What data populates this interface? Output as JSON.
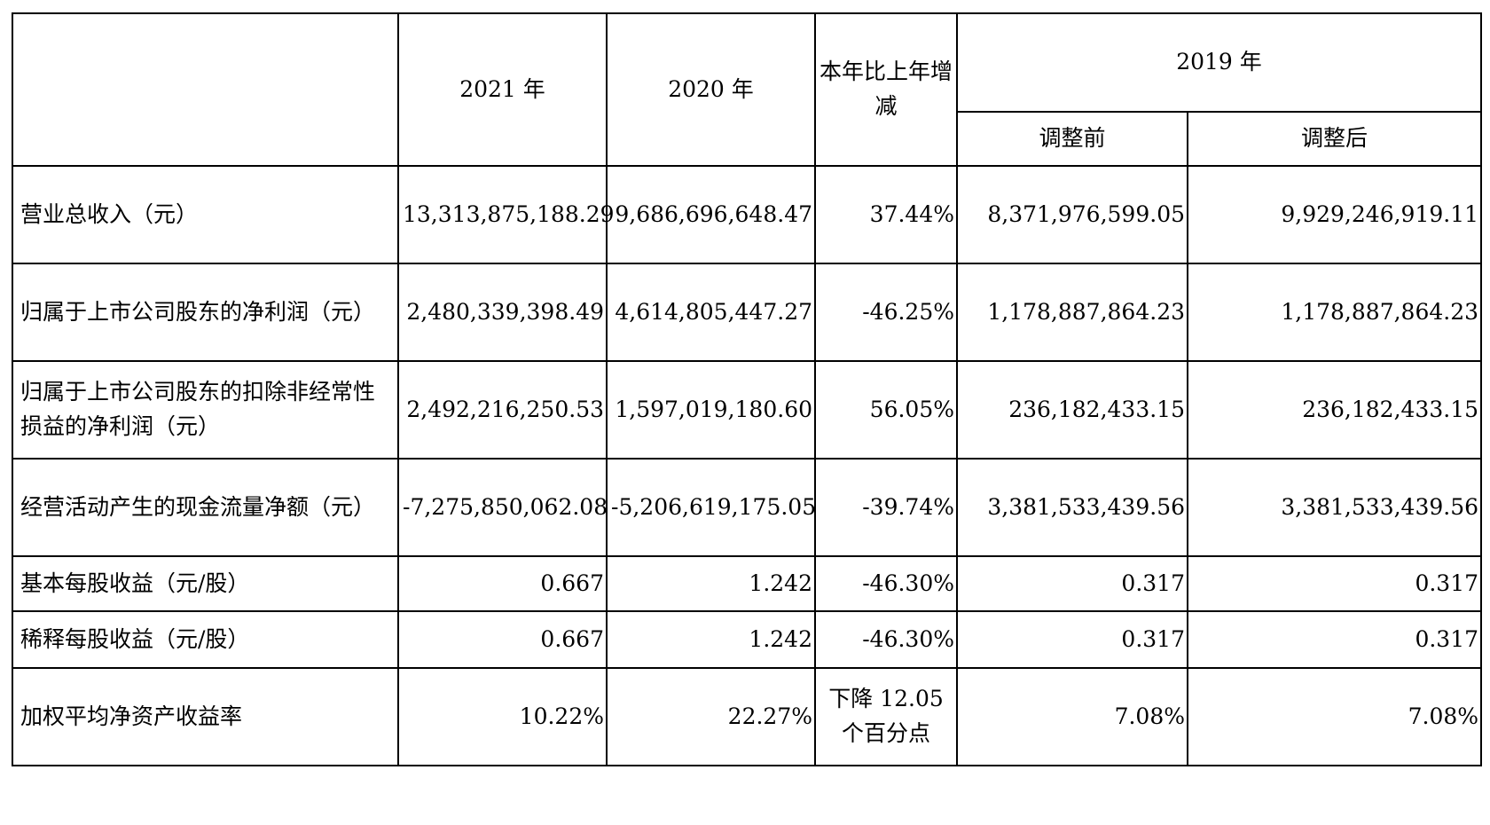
{
  "header": {
    "y2021": "2021 年",
    "y2020": "2020 年",
    "change": "本年比上年增减",
    "y2019": "2019 年",
    "before_adj": "调整前",
    "after_adj": "调整后"
  },
  "rows": [
    {
      "label": "营业总收入（元）",
      "v2021": "13,313,875,188.29",
      "v2020": "9,686,696,648.47",
      "change": "37.44%",
      "v2019_before": "8,371,976,599.05",
      "v2019_after": "9,929,246,919.11"
    },
    {
      "label": "归属于上市公司股东的净利润（元）",
      "v2021": "2,480,339,398.49",
      "v2020": "4,614,805,447.27",
      "change": "-46.25%",
      "v2019_before": "1,178,887,864.23",
      "v2019_after": "1,178,887,864.23"
    },
    {
      "label": "归属于上市公司股东的扣除非经常性损益的净利润（元）",
      "v2021": "2,492,216,250.53",
      "v2020": "1,597,019,180.60",
      "change": "56.05%",
      "v2019_before": "236,182,433.15",
      "v2019_after": "236,182,433.15"
    },
    {
      "label": "经营活动产生的现金流量净额（元）",
      "v2021": "-7,275,850,062.08",
      "v2020": "-5,206,619,175.05",
      "change": "-39.74%",
      "v2019_before": "3,381,533,439.56",
      "v2019_after": "3,381,533,439.56"
    },
    {
      "label": "基本每股收益（元/股）",
      "v2021": "0.667",
      "v2020": "1.242",
      "change": "-46.30%",
      "v2019_before": "0.317",
      "v2019_after": "0.317"
    },
    {
      "label": "稀释每股收益（元/股）",
      "v2021": "0.667",
      "v2020": "1.242",
      "change": "-46.30%",
      "v2019_before": "0.317",
      "v2019_after": "0.317"
    },
    {
      "label": "加权平均净资产收益率",
      "v2021": "10.22%",
      "v2020": "22.27%",
      "change": "下降 12.05 个百分点",
      "v2019_before": "7.08%",
      "v2019_after": "7.08%"
    }
  ]
}
